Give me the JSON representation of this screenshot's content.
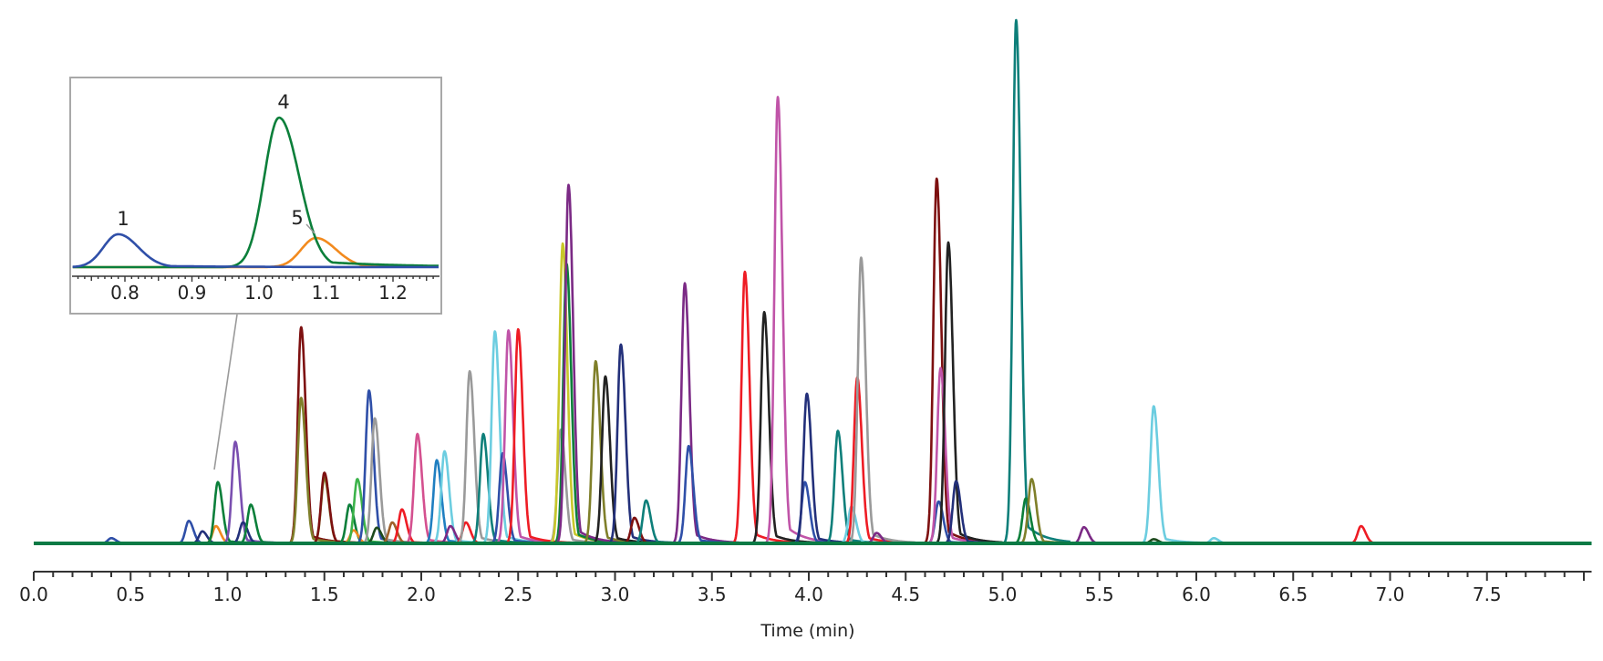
{
  "chart_data": {
    "type": "line",
    "title": "",
    "xlabel": "Time (min)",
    "ylabel": "",
    "xlim": [
      0.0,
      8.04
    ],
    "ylim": [
      0,
      100
    ],
    "grid": false,
    "x_ticks": [
      "0.0",
      "0.5",
      "1.0",
      "1.5",
      "2.0",
      "2.5",
      "3.0",
      "3.5",
      "4.0",
      "4.5",
      "5.0",
      "5.5",
      "6.0",
      "6.5",
      "7.0",
      "7.5"
    ],
    "baseline_color": "#0b7a45",
    "peaks": [
      {
        "t": 0.4,
        "h": 1.0,
        "color": "#2f4fa8"
      },
      {
        "t": 0.8,
        "h": 4.3,
        "color": "#2f4fa8"
      },
      {
        "t": 0.87,
        "h": 2.3,
        "color": "#23307a"
      },
      {
        "t": 0.94,
        "h": 3.3,
        "color": "#f28a1e"
      },
      {
        "t": 0.95,
        "h": 11.7,
        "color": "#0b7f3a"
      },
      {
        "t": 1.04,
        "h": 19.4,
        "color": "#7a4fb0"
      },
      {
        "t": 1.08,
        "h": 4.0,
        "color": "#23307a"
      },
      {
        "t": 1.12,
        "h": 7.4,
        "color": "#0b7f3a"
      },
      {
        "t": 1.38,
        "h": 41.3,
        "color": "#7d1010"
      },
      {
        "t": 1.38,
        "h": 27.8,
        "color": "#7f7f2a"
      },
      {
        "t": 1.5,
        "h": 12.5,
        "color": "#7f7f2a"
      },
      {
        "t": 1.5,
        "h": 13.5,
        "color": "#7d1010"
      },
      {
        "t": 1.63,
        "h": 7.4,
        "color": "#0b7f3a"
      },
      {
        "t": 1.65,
        "h": 2.5,
        "color": "#f28a1e"
      },
      {
        "t": 1.67,
        "h": 12.3,
        "color": "#3cb34a"
      },
      {
        "t": 1.73,
        "h": 29.2,
        "color": "#2f4fa8"
      },
      {
        "t": 1.76,
        "h": 23.9,
        "color": "#9a9a9a"
      },
      {
        "t": 1.77,
        "h": 3.0,
        "color": "#1d4a1d"
      },
      {
        "t": 1.85,
        "h": 4.0,
        "color": "#a0602a"
      },
      {
        "t": 1.9,
        "h": 6.5,
        "color": "#ee1c24"
      },
      {
        "t": 1.98,
        "h": 20.9,
        "color": "#d4508f"
      },
      {
        "t": 2.08,
        "h": 15.9,
        "color": "#1f7fc1"
      },
      {
        "t": 2.12,
        "h": 17.6,
        "color": "#6ccde0"
      },
      {
        "t": 2.15,
        "h": 3.3,
        "color": "#7b2a85"
      },
      {
        "t": 2.23,
        "h": 4.0,
        "color": "#ee1c24"
      },
      {
        "t": 2.25,
        "h": 32.9,
        "color": "#9a9a9a"
      },
      {
        "t": 2.32,
        "h": 20.9,
        "color": "#0e7f7a"
      },
      {
        "t": 2.38,
        "h": 40.5,
        "color": "#6ccde0"
      },
      {
        "t": 2.42,
        "h": 17.2,
        "color": "#2f4fa8"
      },
      {
        "t": 2.45,
        "h": 40.7,
        "color": "#c054a8"
      },
      {
        "t": 2.5,
        "h": 40.9,
        "color": "#ee1c24"
      },
      {
        "t": 2.72,
        "h": 21.7,
        "color": "#9a9a9a"
      },
      {
        "t": 2.73,
        "h": 57.3,
        "color": "#c8c82a"
      },
      {
        "t": 2.75,
        "h": 53.4,
        "color": "#0b7f3a"
      },
      {
        "t": 2.76,
        "h": 68.5,
        "color": "#7b2a85"
      },
      {
        "t": 2.9,
        "h": 34.8,
        "color": "#7f7f2a"
      },
      {
        "t": 2.95,
        "h": 31.9,
        "color": "#222222"
      },
      {
        "t": 3.03,
        "h": 38.0,
        "color": "#23307a"
      },
      {
        "t": 3.1,
        "h": 4.9,
        "color": "#7d1010"
      },
      {
        "t": 3.16,
        "h": 8.2,
        "color": "#0e7f7a"
      },
      {
        "t": 3.36,
        "h": 49.7,
        "color": "#7b2a85"
      },
      {
        "t": 3.38,
        "h": 18.6,
        "color": "#2f4fa8"
      },
      {
        "t": 3.67,
        "h": 51.9,
        "color": "#ee1c24"
      },
      {
        "t": 3.77,
        "h": 44.2,
        "color": "#222222"
      },
      {
        "t": 3.84,
        "h": 85.3,
        "color": "#c054a8"
      },
      {
        "t": 3.98,
        "h": 11.7,
        "color": "#2f4fa8"
      },
      {
        "t": 3.99,
        "h": 28.6,
        "color": "#23307a"
      },
      {
        "t": 4.15,
        "h": 21.5,
        "color": "#0e7f7a"
      },
      {
        "t": 4.22,
        "h": 7.0,
        "color": "#6ccde0"
      },
      {
        "t": 4.25,
        "h": 31.7,
        "color": "#ee1c24"
      },
      {
        "t": 4.27,
        "h": 54.6,
        "color": "#9a9a9a"
      },
      {
        "t": 4.35,
        "h": 2.0,
        "color": "#7b2a85"
      },
      {
        "t": 4.66,
        "h": 69.7,
        "color": "#7d1010"
      },
      {
        "t": 4.67,
        "h": 8.0,
        "color": "#2f4fa8"
      },
      {
        "t": 4.68,
        "h": 33.5,
        "color": "#c054a8"
      },
      {
        "t": 4.72,
        "h": 57.5,
        "color": "#222222"
      },
      {
        "t": 4.76,
        "h": 11.9,
        "color": "#23307a"
      },
      {
        "t": 5.07,
        "h": 100.0,
        "color": "#0e7f7a"
      },
      {
        "t": 5.12,
        "h": 8.6,
        "color": "#0b7f3a"
      },
      {
        "t": 5.15,
        "h": 12.3,
        "color": "#7f7f2a"
      },
      {
        "t": 5.42,
        "h": 3.1,
        "color": "#7b2a85"
      },
      {
        "t": 5.78,
        "h": 0.8,
        "color": "#1d4a1d"
      },
      {
        "t": 5.78,
        "h": 26.2,
        "color": "#6ccde0"
      },
      {
        "t": 6.09,
        "h": 1.0,
        "color": "#6ccde0"
      },
      {
        "t": 6.85,
        "h": 3.3,
        "color": "#ee1c24"
      }
    ],
    "inset": {
      "xlim": [
        0.72,
        1.27
      ],
      "x_ticks": [
        "0.8",
        "0.9",
        "1.0",
        "1.1",
        "1.2"
      ],
      "peaks": [
        {
          "label": "1",
          "t": 0.79,
          "h": 22,
          "color": "#2f4fa8"
        },
        {
          "label": "4",
          "t": 1.03,
          "h": 100,
          "color": "#0b7f3a"
        },
        {
          "label": "5",
          "t": 1.085,
          "h": 19.5,
          "color": "#f28a1e"
        }
      ]
    }
  }
}
